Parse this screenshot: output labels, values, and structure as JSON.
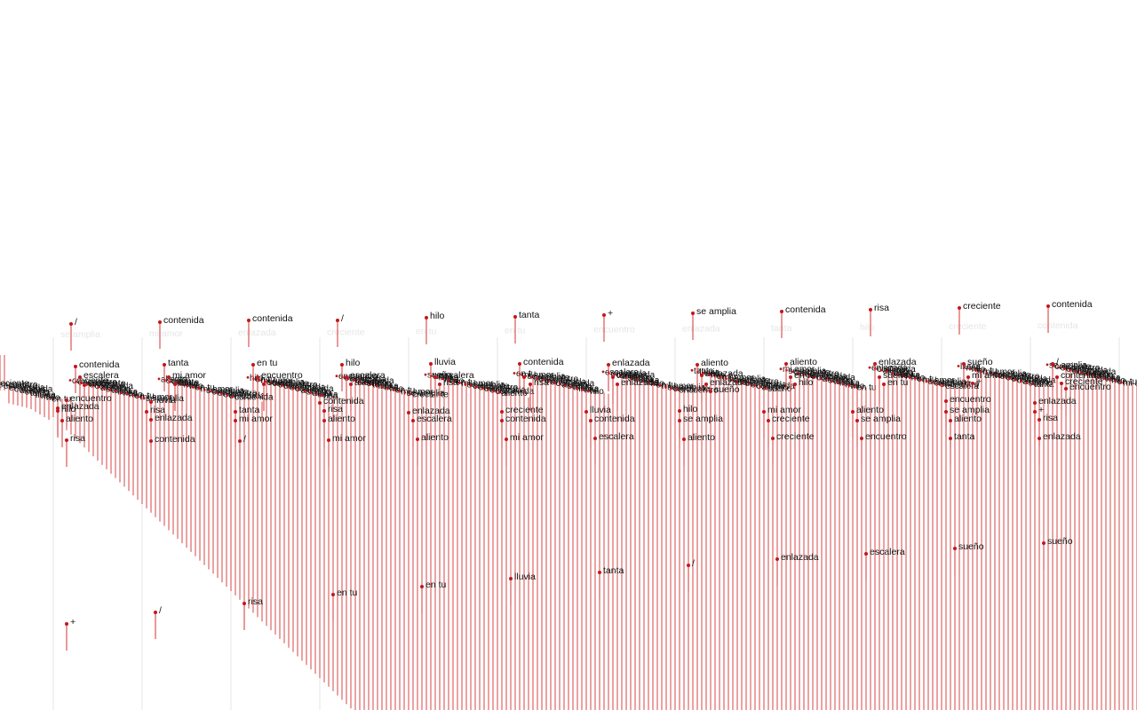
{
  "colors": {
    "background": "#ffffff",
    "stem": "#d94545",
    "dot": "#c4161c",
    "label": "#111111",
    "ghost": "#e6e6e6"
  },
  "columns": [
    {
      "ghost": "se amplia",
      "feature": [
        {
          "text": "/"
        },
        {
          "text": "contenida"
        },
        {
          "text": "escalera"
        },
        {
          "text": "creciente"
        },
        {
          "text": "encuentro"
        },
        {
          "text": "enlazada"
        },
        {
          "text": "hilo"
        },
        {
          "text": "aliento"
        },
        {
          "text": "risa"
        },
        {
          "text": "+"
        }
      ]
    },
    {
      "ghost": "mi amor",
      "feature": [
        {
          "text": "contenida"
        },
        {
          "text": "tanta"
        },
        {
          "text": "mi amor"
        },
        {
          "text": "tanta"
        },
        {
          "text": "lluvia"
        },
        {
          "text": "risa"
        },
        {
          "text": "enlazada"
        },
        {
          "text": "contenida"
        },
        {
          "text": "/"
        }
      ]
    },
    {
      "ghost": "enlazada",
      "feature": [
        {
          "text": "contenida"
        },
        {
          "text": "en tu"
        },
        {
          "text": "encuentro"
        },
        {
          "text": "sueño"
        },
        {
          "text": "tanta"
        },
        {
          "text": "mi amor"
        },
        {
          "text": "/"
        },
        {
          "text": "risa"
        }
      ]
    },
    {
      "ghost": "creciente",
      "feature": [
        {
          "text": "/"
        },
        {
          "text": "hilo"
        },
        {
          "text": "escalera"
        },
        {
          "text": "aliento"
        },
        {
          "text": "contenida"
        },
        {
          "text": "risa"
        },
        {
          "text": "aliento"
        },
        {
          "text": "mi amor"
        },
        {
          "text": "en tu"
        }
      ]
    },
    {
      "ghost": "en tu",
      "feature": [
        {
          "text": "hilo"
        },
        {
          "text": "lluvia"
        },
        {
          "text": "escalera"
        },
        {
          "text": "risa"
        },
        {
          "text": "enlazada"
        },
        {
          "text": "escalera"
        },
        {
          "text": "aliento"
        },
        {
          "text": "en tu"
        }
      ]
    },
    {
      "ghost": "en tu",
      "feature": [
        {
          "text": "tanta"
        },
        {
          "text": "contenida"
        },
        {
          "text": "/"
        },
        {
          "text": "risa"
        },
        {
          "text": "creciente"
        },
        {
          "text": "contenida"
        },
        {
          "text": "mi amor"
        },
        {
          "text": "lluvia"
        }
      ]
    },
    {
      "ghost": "encuentro",
      "feature": [
        {
          "text": "+"
        },
        {
          "text": "enlazada"
        },
        {
          "text": "tanta"
        },
        {
          "text": "enlazada"
        },
        {
          "text": "lluvia"
        },
        {
          "text": "contenida"
        },
        {
          "text": "escalera"
        },
        {
          "text": "tanta"
        }
      ]
    },
    {
      "ghost": "enlazada",
      "feature": [
        {
          "text": "se amplia"
        },
        {
          "text": "aliento"
        },
        {
          "text": "enlazada"
        },
        {
          "text": "enlazada"
        },
        {
          "text": "sueño"
        },
        {
          "text": "hilo"
        },
        {
          "text": "se amplia"
        },
        {
          "text": "aliento"
        },
        {
          "text": "/"
        }
      ]
    },
    {
      "ghost": "tanta",
      "feature": [
        {
          "text": "contenida"
        },
        {
          "text": "aliento"
        },
        {
          "text": "en tu"
        },
        {
          "text": "hilo"
        },
        {
          "text": "mi amor"
        },
        {
          "text": "creciente"
        },
        {
          "text": "creciente"
        },
        {
          "text": "enlazada"
        }
      ]
    },
    {
      "ghost": "hilo",
      "feature": [
        {
          "text": "risa"
        },
        {
          "text": "enlazada"
        },
        {
          "text": "sueño"
        },
        {
          "text": "en tu"
        },
        {
          "text": "aliento"
        },
        {
          "text": "se amplia"
        },
        {
          "text": "encuentro"
        },
        {
          "text": "escalera"
        }
      ]
    },
    {
      "ghost": "creciente",
      "feature": [
        {
          "text": "creciente"
        },
        {
          "text": "sueño"
        },
        {
          "text": "mi amor"
        },
        {
          "text": "+"
        },
        {
          "text": "encuentro"
        },
        {
          "text": "se amplia"
        },
        {
          "text": "aliento"
        },
        {
          "text": "tanta"
        },
        {
          "text": "sueño"
        }
      ]
    },
    {
      "ghost": "contenida",
      "feature": [
        {
          "text": "contenida"
        },
        {
          "text": "/"
        },
        {
          "text": "contenida"
        },
        {
          "text": "creciente"
        },
        {
          "text": "encuentro"
        },
        {
          "text": "enlazada"
        },
        {
          "text": "+"
        },
        {
          "text": "risa"
        },
        {
          "text": "enlazada"
        },
        {
          "text": "sueño"
        }
      ]
    }
  ],
  "crowd_words": [
    "creciente",
    "encuentro",
    "escalera",
    "enlazada",
    "contenida",
    "aliento",
    "sueño",
    "tanta",
    "lluvia",
    "risa",
    "hilo",
    "en tu",
    "mi amor",
    "se amplia"
  ]
}
